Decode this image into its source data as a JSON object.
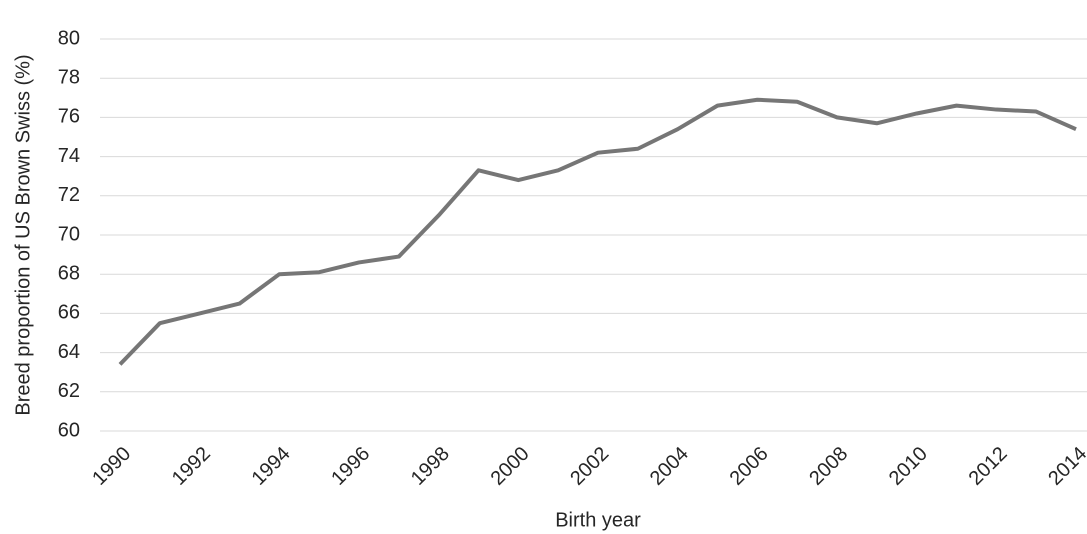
{
  "chart_data": {
    "type": "line",
    "x_label": "Birth year",
    "y_label": "Breed proportion of  US Brown Swiss  (%)",
    "x": [
      1990,
      1991,
      1992,
      1993,
      1994,
      1995,
      1996,
      1997,
      1998,
      1999,
      2000,
      2001,
      2002,
      2003,
      2004,
      2005,
      2006,
      2007,
      2008,
      2009,
      2010,
      2011,
      2012,
      2013,
      2014
    ],
    "series": [
      {
        "color": "#767676",
        "values": [
          63.4,
          65.5,
          66.0,
          66.5,
          68.0,
          68.1,
          68.6,
          68.9,
          71.0,
          73.3,
          72.8,
          73.3,
          74.2,
          74.4,
          75.4,
          76.6,
          76.9,
          76.8,
          76.0,
          75.7,
          76.2,
          76.6,
          76.4,
          76.3,
          75.4
        ]
      }
    ],
    "xlim": [
      1990,
      2014
    ],
    "xticks": [
      1990,
      1992,
      1994,
      1996,
      1998,
      2000,
      2002,
      2004,
      2006,
      2008,
      2010,
      2012,
      2014
    ],
    "ylim": [
      60,
      80
    ],
    "yticks": [
      60,
      62,
      64,
      66,
      68,
      70,
      72,
      74,
      76,
      78,
      80
    ],
    "grid": true
  }
}
